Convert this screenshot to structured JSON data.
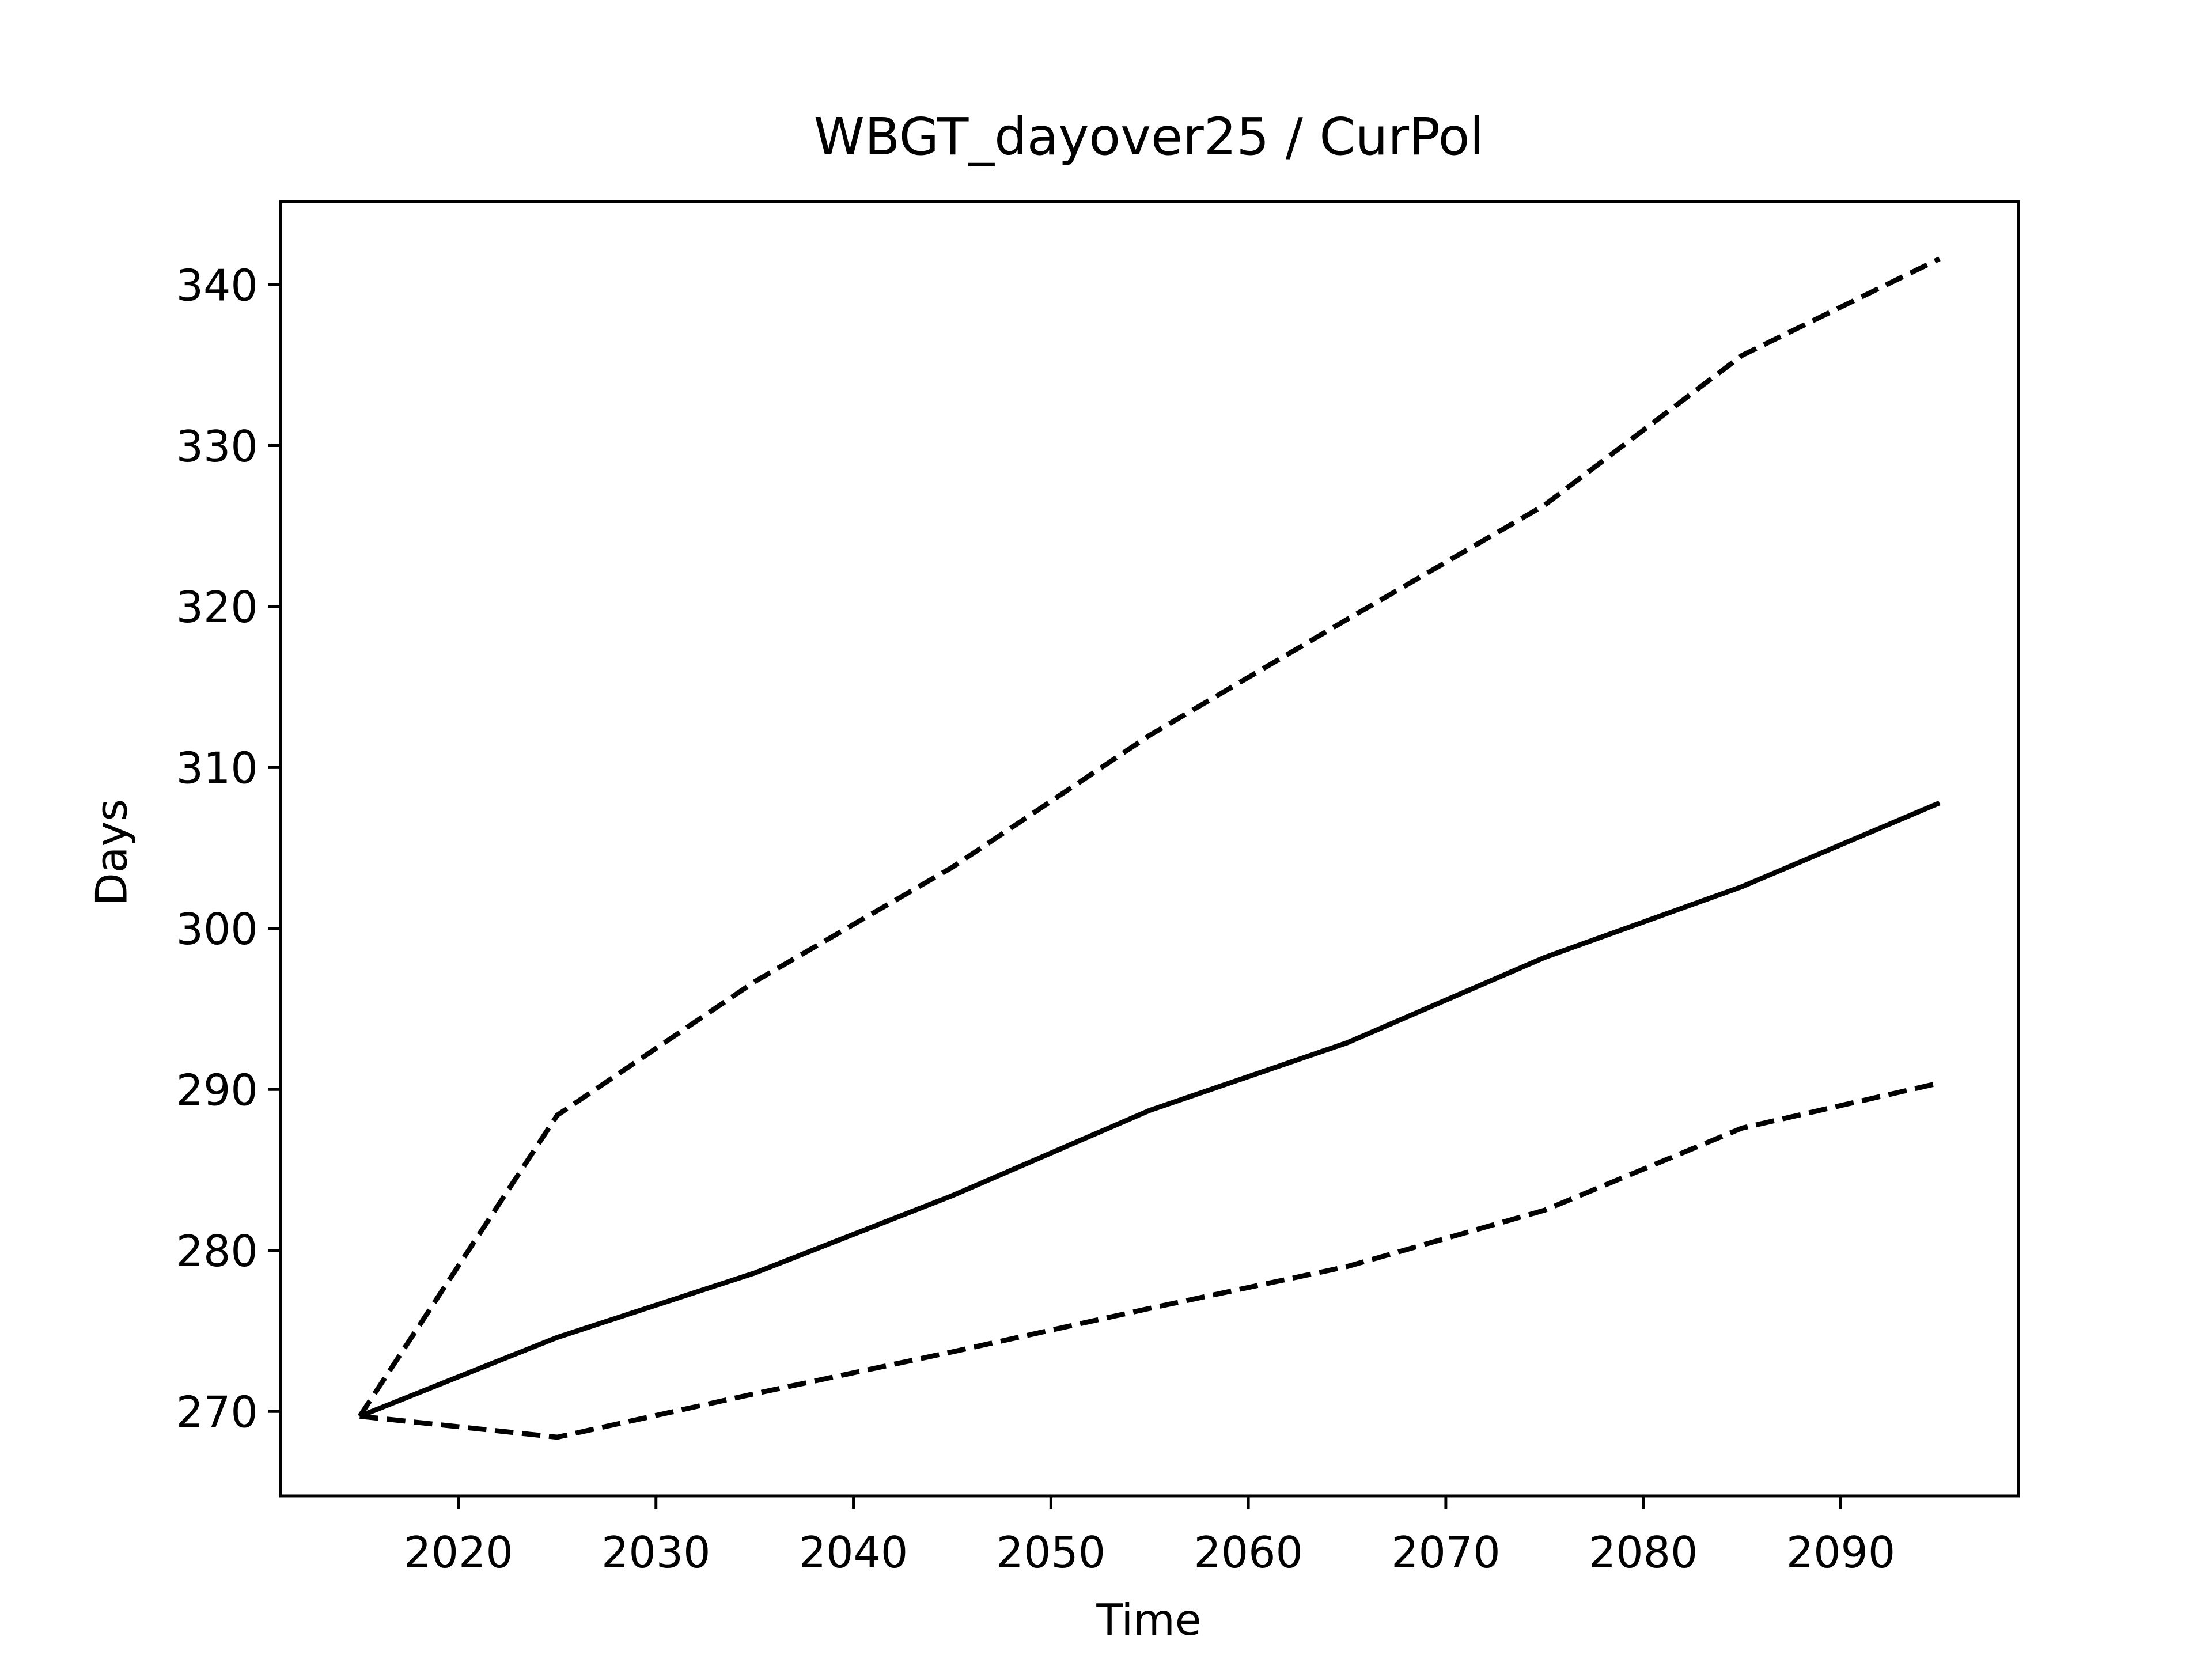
{
  "chart_data": {
    "type": "line",
    "title": "WBGT_dayover25 / CurPol",
    "x_label": "Time",
    "y_label": "Days",
    "x": [
      2015,
      2025,
      2035,
      2045,
      2055,
      2065,
      2075,
      2085,
      2095
    ],
    "series": [
      {
        "color": "#000000",
        "linestyle": "dashed",
        "values": [
          269.7,
          288.4,
          296.7,
          303.8,
          312.0,
          319.2,
          326.3,
          335.6,
          341.6
        ]
      },
      {
        "color": "#000000",
        "linestyle": "solid",
        "values": [
          269.7,
          274.6,
          278.6,
          283.4,
          288.7,
          292.9,
          298.2,
          302.6,
          307.8
        ]
      },
      {
        "color": "#000000",
        "linestyle": "dashed",
        "values": [
          269.7,
          268.4,
          271.1,
          273.7,
          276.4,
          279.0,
          282.5,
          287.6,
          290.4
        ]
      }
    ],
    "xlim": [
      2011,
      2099
    ],
    "xticks": [
      2020,
      2030,
      2040,
      2050,
      2060,
      2070,
      2080,
      2090
    ],
    "ylim": [
      264.75,
      345.15
    ],
    "yticks": [
      270,
      280,
      290,
      300,
      310,
      320,
      330,
      340
    ],
    "grid": false
  }
}
